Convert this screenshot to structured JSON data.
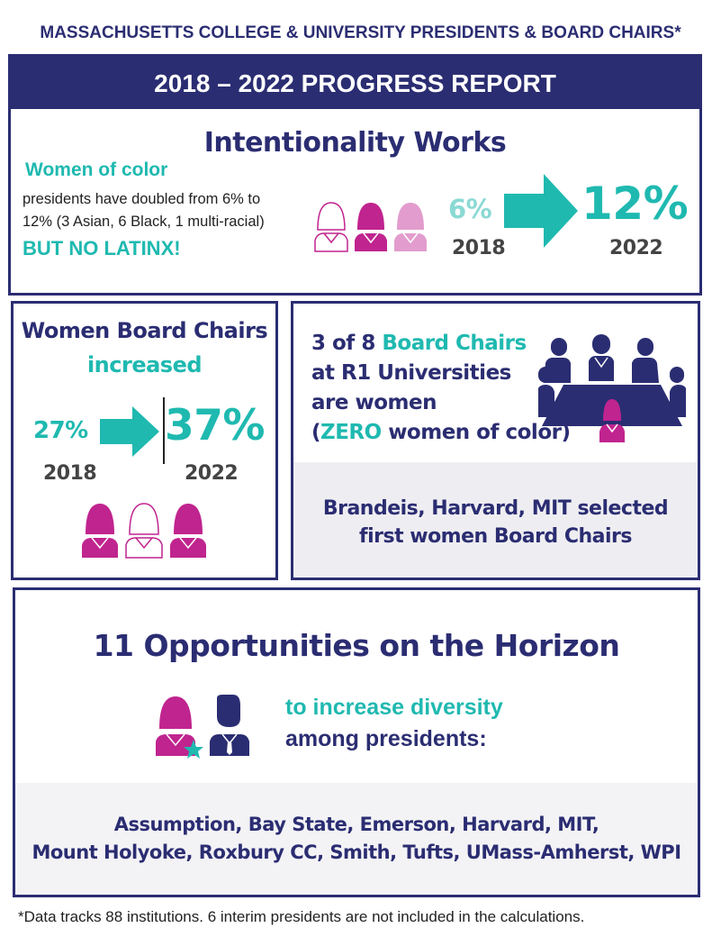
{
  "header": {
    "super_title": "MASSACHUSETTS COLLEGE & UNIVERSITY PRESIDENTS & BOARD CHAIRS*",
    "banner": "2018 – 2022 PROGRESS REPORT"
  },
  "intentionality": {
    "title": "Intentionality Works",
    "label": "Women of color",
    "desc_line1": "presidents have doubled from 6% to",
    "desc_line2": "12% (3 Asian, 6 Black, 1 multi-racial)",
    "alert": "BUT NO LATINX!",
    "pct_2018": "6%",
    "year_2018": "2018",
    "pct_2022": "12%",
    "year_2022": "2022",
    "icons": [
      "woman-outline-icon",
      "woman-magenta-icon",
      "woman-pink-icon"
    ]
  },
  "board_chairs": {
    "title_line1": "Women Board Chairs",
    "title_line2": "increased",
    "pct_2018": "27%",
    "year_2018": "2018",
    "pct_2022": "37%",
    "year_2022": "2022",
    "icons": [
      "woman-magenta-icon",
      "woman-outline-icon",
      "woman-magenta-icon"
    ]
  },
  "r1": {
    "count": "3 of 8",
    "highlight": "Board Chairs",
    "line2": "at R1 Universities",
    "line3": "are women",
    "paren_open": "(",
    "zero": "ZERO",
    "paren_rest": "women of color)",
    "foot_line1": "Brandeis, Harvard, MIT selected",
    "foot_line2": "first women Board Chairs"
  },
  "opportunities": {
    "title": "11 Opportunities on the Horizon",
    "line1": "to increase diversity",
    "line2": "among presidents:",
    "list_line1": "Assumption, Bay State, Emerson, Harvard, MIT,",
    "list_line2": "Mount Holyoke, Roxbury CC, Smith, Tufts, UMass-Amherst, WPI"
  },
  "footnote": "*Data tracks 88 institutions. 6 interim presidents are not included in the calculations.",
  "colors": {
    "navy": "#2b2d72",
    "teal": "#1fb9b0",
    "light_teal": "#8bd9d4",
    "magenta": "#c0248f",
    "pink": "#e29ccd"
  }
}
